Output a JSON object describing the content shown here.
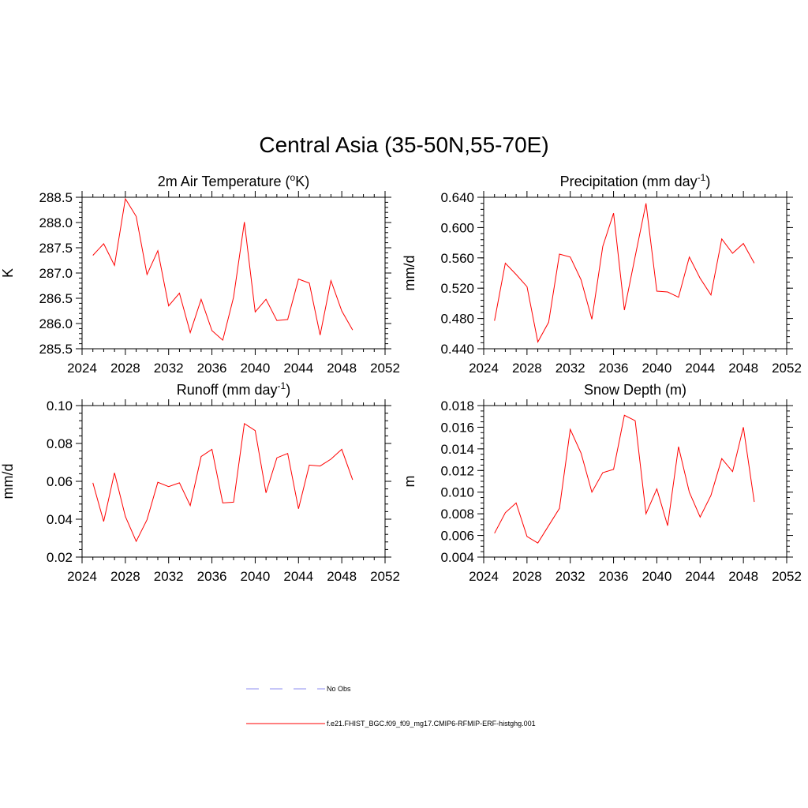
{
  "page_title": "Central Asia (35-50N,55-70E)",
  "colors": {
    "model": "#ff0000",
    "obs": "#8c8cf0",
    "axis": "#000000"
  },
  "legend": {
    "obs_label": "No Obs",
    "model_label": "f.e21.FHIST_BGC.f09_f09_mg17.CMIP6-RFMIP-ERF-histghg.001"
  },
  "chart_data": [
    {
      "type": "line",
      "title_parts": [
        "2m Air Temperature (",
        "o",
        "K)"
      ],
      "ylabel": "K",
      "xlim": [
        2024,
        2052
      ],
      "x_ticks": [
        2024,
        2028,
        2032,
        2036,
        2040,
        2044,
        2048,
        2052
      ],
      "ylim": [
        285.5,
        288.5
      ],
      "y_ticks": [
        "285.5",
        "286.0",
        "286.5",
        "287.0",
        "287.5",
        "288.0",
        "288.5"
      ],
      "y_minor_step": 0.1,
      "x": [
        2025,
        2026,
        2027,
        2028,
        2029,
        2030,
        2031,
        2032,
        2033,
        2034,
        2035,
        2036,
        2037,
        2038,
        2039,
        2040,
        2041,
        2042,
        2043,
        2044,
        2045,
        2046,
        2047,
        2048,
        2049
      ],
      "series": [
        {
          "name": "f.e21.FHIST_BGC.f09_f09_mg17.CMIP6-RFMIP-ERF-histghg.001",
          "values": [
            287.35,
            287.58,
            287.15,
            288.47,
            288.12,
            286.97,
            287.44,
            286.35,
            286.6,
            285.82,
            286.48,
            285.86,
            285.67,
            286.52,
            288.01,
            286.23,
            286.48,
            286.06,
            286.08,
            286.88,
            286.8,
            285.77,
            286.85,
            286.25,
            285.87
          ]
        }
      ]
    },
    {
      "type": "line",
      "title_parts": [
        "Precipitation (mm day",
        "-1",
        ")"
      ],
      "ylabel": "mm/d",
      "xlim": [
        2024,
        2052
      ],
      "x_ticks": [
        2024,
        2028,
        2032,
        2036,
        2040,
        2044,
        2048,
        2052
      ],
      "ylim": [
        0.44,
        0.64
      ],
      "y_ticks": [
        "0.440",
        "0.480",
        "0.520",
        "0.560",
        "0.600",
        "0.640"
      ],
      "y_minor_step": 0.008,
      "x": [
        2025,
        2026,
        2027,
        2028,
        2029,
        2030,
        2031,
        2032,
        2033,
        2034,
        2035,
        2036,
        2037,
        2038,
        2039,
        2040,
        2041,
        2042,
        2043,
        2044,
        2045,
        2046,
        2047,
        2048,
        2049
      ],
      "series": [
        {
          "name": "f.e21.FHIST_BGC.f09_f09_mg17.CMIP6-RFMIP-ERF-histghg.001",
          "values": [
            0.477,
            0.553,
            0.538,
            0.522,
            0.449,
            0.475,
            0.565,
            0.561,
            0.531,
            0.479,
            0.575,
            0.619,
            0.491,
            0.562,
            0.632,
            0.516,
            0.515,
            0.508,
            0.561,
            0.533,
            0.511,
            0.585,
            0.566,
            0.579,
            0.553
          ]
        }
      ]
    },
    {
      "type": "line",
      "title_parts": [
        "Runoff (mm day",
        "-1",
        ")"
      ],
      "ylabel": "mm/d",
      "xlim": [
        2024,
        2052
      ],
      "x_ticks": [
        2024,
        2028,
        2032,
        2036,
        2040,
        2044,
        2048,
        2052
      ],
      "ylim": [
        0.02,
        0.1
      ],
      "y_ticks": [
        "0.02",
        "0.04",
        "0.06",
        "0.08",
        "0.10"
      ],
      "y_minor_step": 0.004,
      "x": [
        2025,
        2026,
        2027,
        2028,
        2029,
        2030,
        2031,
        2032,
        2033,
        2034,
        2035,
        2036,
        2037,
        2038,
        2039,
        2040,
        2041,
        2042,
        2043,
        2044,
        2045,
        2046,
        2047,
        2048,
        2049
      ],
      "series": [
        {
          "name": "f.e21.FHIST_BGC.f09_f09_mg17.CMIP6-RFMIP-ERF-histghg.001",
          "values": [
            0.0592,
            0.0388,
            0.0645,
            0.0414,
            0.0283,
            0.0397,
            0.0595,
            0.0572,
            0.0592,
            0.0472,
            0.0731,
            0.0769,
            0.0486,
            0.049,
            0.0905,
            0.0868,
            0.0539,
            0.0724,
            0.0747,
            0.0455,
            0.0686,
            0.0681,
            0.0717,
            0.0769,
            0.0608
          ]
        }
      ]
    },
    {
      "type": "line",
      "title_parts": [
        "Snow Depth (m)",
        "",
        ""
      ],
      "ylabel": "m",
      "xlim": [
        2024,
        2052
      ],
      "x_ticks": [
        2024,
        2028,
        2032,
        2036,
        2040,
        2044,
        2048,
        2052
      ],
      "ylim": [
        0.004,
        0.018
      ],
      "y_ticks": [
        "0.004",
        "0.006",
        "0.008",
        "0.010",
        "0.012",
        "0.014",
        "0.016",
        "0.018"
      ],
      "y_minor_step": 0.0005,
      "x": [
        2025,
        2026,
        2027,
        2028,
        2029,
        2030,
        2031,
        2032,
        2033,
        2034,
        2035,
        2036,
        2037,
        2038,
        2039,
        2040,
        2041,
        2042,
        2043,
        2044,
        2045,
        2046,
        2047,
        2048,
        2049
      ],
      "series": [
        {
          "name": "f.e21.FHIST_BGC.f09_f09_mg17.CMIP6-RFMIP-ERF-histghg.001",
          "values": [
            0.0062,
            0.0081,
            0.009,
            0.0059,
            0.0053,
            0.0069,
            0.0085,
            0.0158,
            0.0136,
            0.01,
            0.0118,
            0.0121,
            0.0171,
            0.0166,
            0.008,
            0.0103,
            0.0069,
            0.0142,
            0.01,
            0.0077,
            0.0097,
            0.0131,
            0.0119,
            0.016,
            0.0091
          ]
        }
      ]
    }
  ]
}
